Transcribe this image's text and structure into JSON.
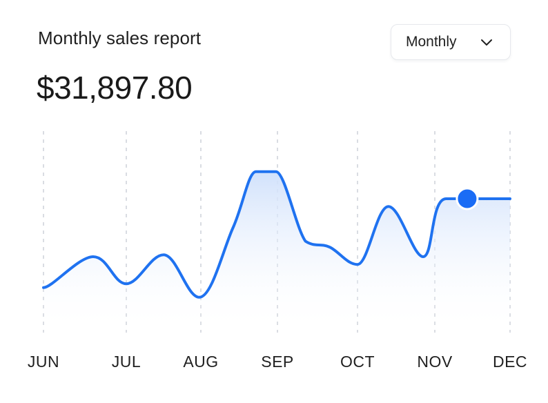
{
  "header": {
    "title": "Monthly sales report",
    "total": "$31,897.80"
  },
  "period_select": {
    "value": "Monthly",
    "icon": "chevron-down-icon"
  },
  "colors": {
    "line": "#1f72f0",
    "marker": "#1a6cf5",
    "fill_top": "#cfe0fb",
    "grid": "#d9dce2",
    "text": "#1f1f1f"
  },
  "chart_data": {
    "type": "area",
    "title": "Monthly sales report",
    "xlabel": "",
    "ylabel": "",
    "categories": [
      "JUN",
      "JUL",
      "AUG",
      "SEP",
      "OCT",
      "NOV",
      "DEC"
    ],
    "grid": "vertical dashed lines at each month",
    "ylim": [
      0,
      100
    ],
    "series": [
      {
        "values": [
          {
            "x": 0.0,
            "y": 19
          },
          {
            "x": 0.6,
            "y": 35
          },
          {
            "x": 1.0,
            "y": 21
          },
          {
            "x": 1.5,
            "y": 36
          },
          {
            "x": 1.98,
            "y": 14
          },
          {
            "x": 2.42,
            "y": 50
          },
          {
            "x": 2.72,
            "y": 79
          },
          {
            "x": 2.98,
            "y": 79
          },
          {
            "x": 3.35,
            "y": 43
          },
          {
            "x": 3.65,
            "y": 40
          },
          {
            "x": 4.0,
            "y": 31
          },
          {
            "x": 4.4,
            "y": 61
          },
          {
            "x": 4.85,
            "y": 35
          },
          {
            "x": 5.15,
            "y": 65
          },
          {
            "x": 6.0,
            "y": 65
          }
        ]
      }
    ],
    "highlight": {
      "x": 5.43,
      "y": 65
    }
  }
}
